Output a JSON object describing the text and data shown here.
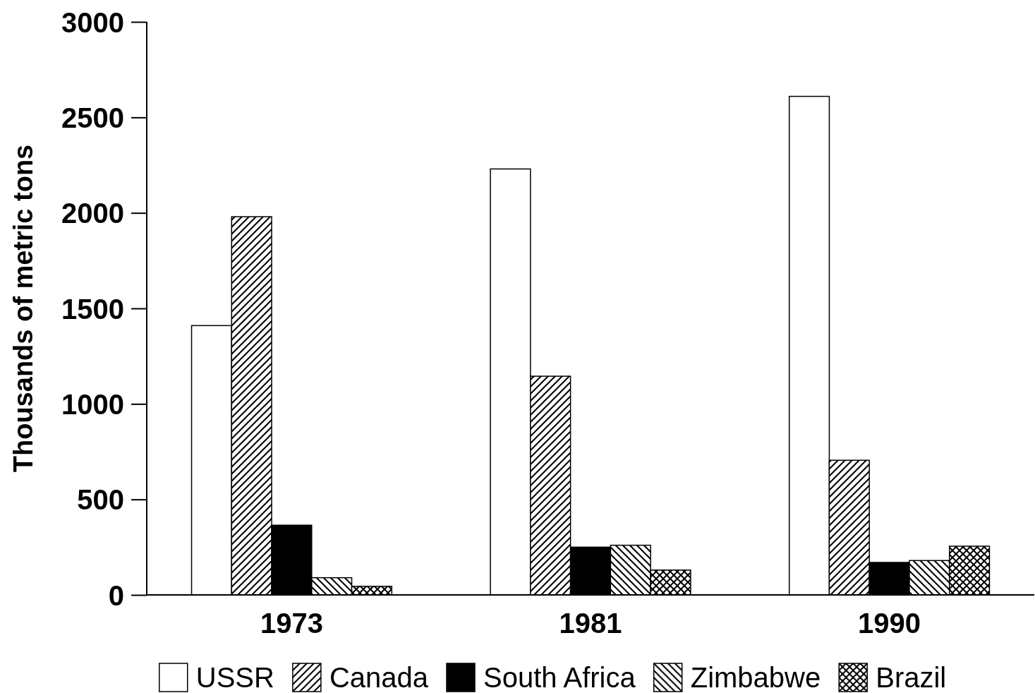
{
  "chart_data": {
    "type": "bar",
    "ylabel": "Thousands of metric tons",
    "categories": [
      "1973",
      "1981",
      "1990"
    ],
    "series": [
      {
        "name": "USSR",
        "color": "#ffffff",
        "values": [
          1410,
          2230,
          2610
        ]
      },
      {
        "name": "Canada",
        "color": "#000000",
        "values": [
          1980,
          1145,
          705
        ]
      },
      {
        "name": "South Africa",
        "color": "#000000",
        "values": [
          365,
          250,
          170
        ]
      },
      {
        "name": "Zimbabwe",
        "color": "#000000",
        "values": [
          90,
          260,
          180
        ]
      },
      {
        "name": "Brazil",
        "color": "#000000",
        "values": [
          45,
          130,
          255
        ]
      }
    ],
    "ylim": [
      0,
      3000
    ],
    "yticks": [
      0,
      500,
      1000,
      1500,
      2000,
      2500,
      3000
    ],
    "grid": false,
    "legend": "bottom"
  }
}
